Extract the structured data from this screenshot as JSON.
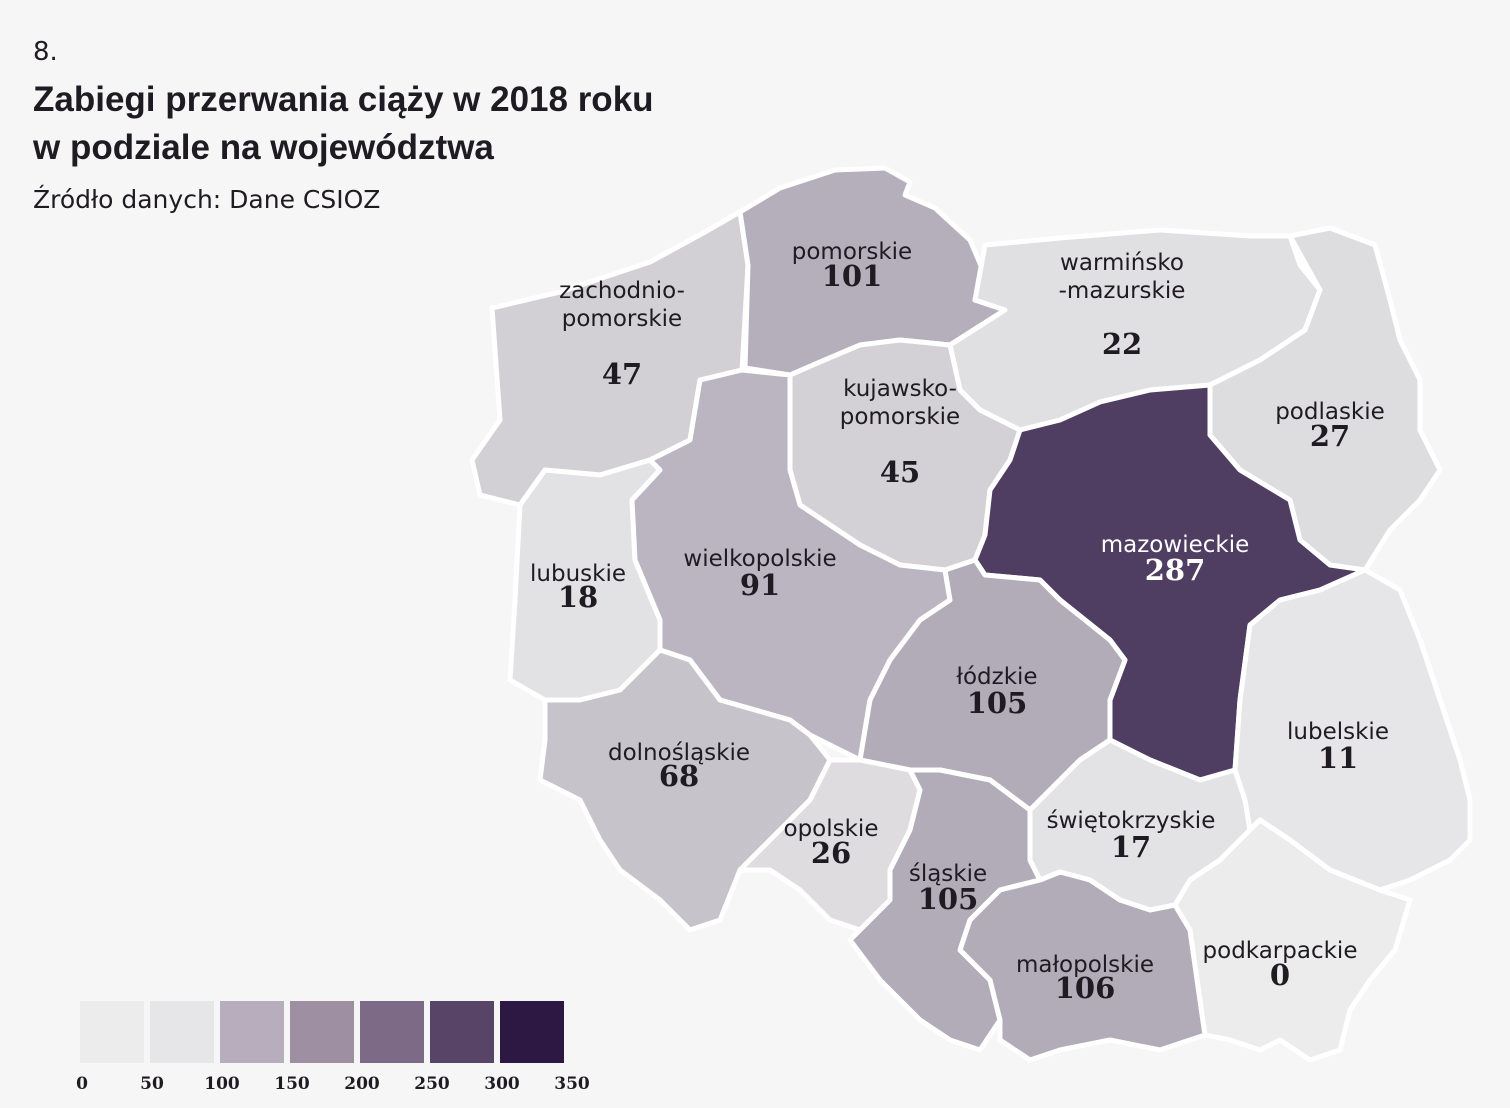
{
  "figure_number": "8.",
  "title_line1": "Zabiegi przerwania ciąży w 2018 roku",
  "title_line2": "w podziale na województwa",
  "source": "Źródło danych: Dane CSIOZ",
  "regions": [
    {
      "id": "zachodniopomorskie",
      "name_lines": [
        "zachodnio-",
        "pomorskie"
      ],
      "value": 47
    },
    {
      "id": "pomorskie",
      "name_lines": [
        "pomorskie"
      ],
      "value": 101
    },
    {
      "id": "warminsko-mazurskie",
      "name_lines": [
        "warmińsko",
        "-mazurskie"
      ],
      "value": 22
    },
    {
      "id": "podlaskie",
      "name_lines": [
        "podlaskie"
      ],
      "value": 27
    },
    {
      "id": "kujawsko-pomorskie",
      "name_lines": [
        "kujawsko-",
        "pomorskie"
      ],
      "value": 45
    },
    {
      "id": "lubuskie",
      "name_lines": [
        "lubuskie"
      ],
      "value": 18
    },
    {
      "id": "wielkopolskie",
      "name_lines": [
        "wielkopolskie"
      ],
      "value": 91
    },
    {
      "id": "mazowieckie",
      "name_lines": [
        "mazowieckie"
      ],
      "value": 287
    },
    {
      "id": "lodzkie",
      "name_lines": [
        "łódzkie"
      ],
      "value": 105
    },
    {
      "id": "dolnoslaskie",
      "name_lines": [
        "dolnośląskie"
      ],
      "value": 68
    },
    {
      "id": "opolskie",
      "name_lines": [
        "opolskie"
      ],
      "value": 26
    },
    {
      "id": "slaskie",
      "name_lines": [
        "śląskie"
      ],
      "value": 105
    },
    {
      "id": "swietokrzyskie",
      "name_lines": [
        "świętokrzyskie"
      ],
      "value": 17
    },
    {
      "id": "lubelskie",
      "name_lines": [
        "lubelskie"
      ],
      "value": 11
    },
    {
      "id": "malopolskie",
      "name_lines": [
        "małopolskie"
      ],
      "value": 106
    },
    {
      "id": "podkarpackie",
      "name_lines": [
        "podkarpackie"
      ],
      "value": 0
    }
  ],
  "color_scale": {
    "min": 0,
    "max": 350,
    "low_color": "#ececec",
    "high_color": "#2c1843",
    "light_text_color": "#ffffff",
    "dark_text_color": "#1f1b22"
  },
  "legend": {
    "ticks": [
      "0",
      "50",
      "100",
      "150",
      "200",
      "250",
      "300",
      "350"
    ],
    "colors": [
      "#ececec",
      "#e6e5e7",
      "#b8adbd",
      "#9e8fa3",
      "#7c6a86",
      "#574467",
      "#2c1843"
    ]
  }
}
